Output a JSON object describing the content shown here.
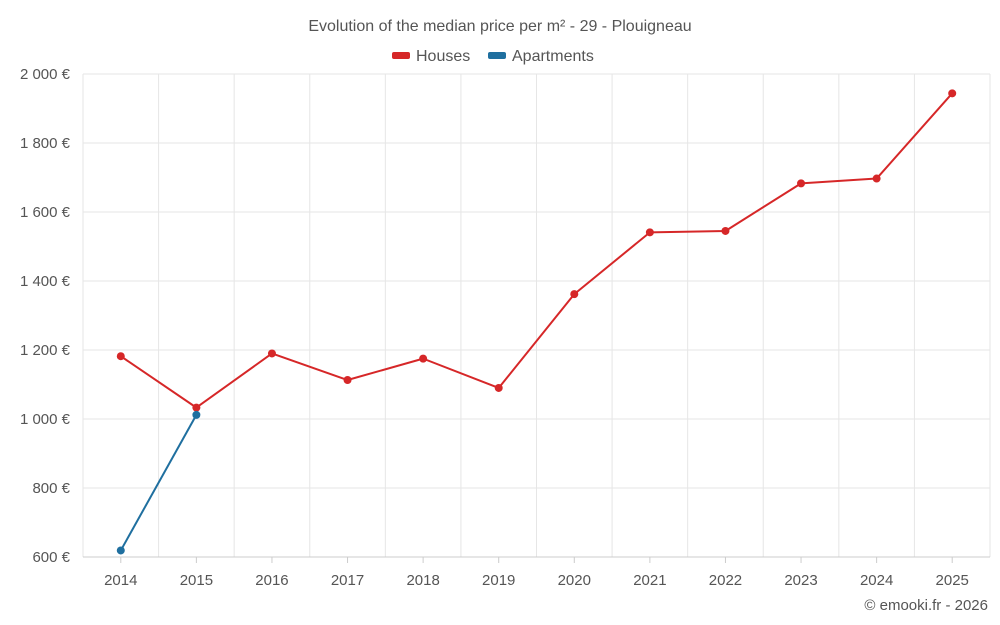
{
  "chart_data": {
    "type": "line",
    "title": "Evolution of the median price per m² - 29 - Plouigneau",
    "categories": [
      "2014",
      "2015",
      "2016",
      "2017",
      "2018",
      "2019",
      "2020",
      "2021",
      "2022",
      "2023",
      "2024",
      "2025"
    ],
    "y_tick_labels": [
      "600 €",
      "800 €",
      "1 000 €",
      "1 200 €",
      "1 400 €",
      "1 600 €",
      "1 800 €",
      "2 000 €"
    ],
    "y_ticks": [
      600,
      800,
      1000,
      1200,
      1400,
      1600,
      1800,
      2000
    ],
    "ylim": [
      600,
      2000
    ],
    "grid": true,
    "legend_position": "top-center",
    "series": [
      {
        "name": "Houses",
        "color": "#d62728",
        "values": [
          1182,
          1033,
          1190,
          1113,
          1175,
          1090,
          1362,
          1541,
          1545,
          1683,
          1697,
          1944
        ]
      },
      {
        "name": "Apartments",
        "color": "#1f6f9f",
        "values": [
          619,
          1012,
          null,
          null,
          null,
          null,
          null,
          null,
          null,
          null,
          null,
          null
        ]
      }
    ]
  },
  "credit": "© emooki.fr - 2026"
}
